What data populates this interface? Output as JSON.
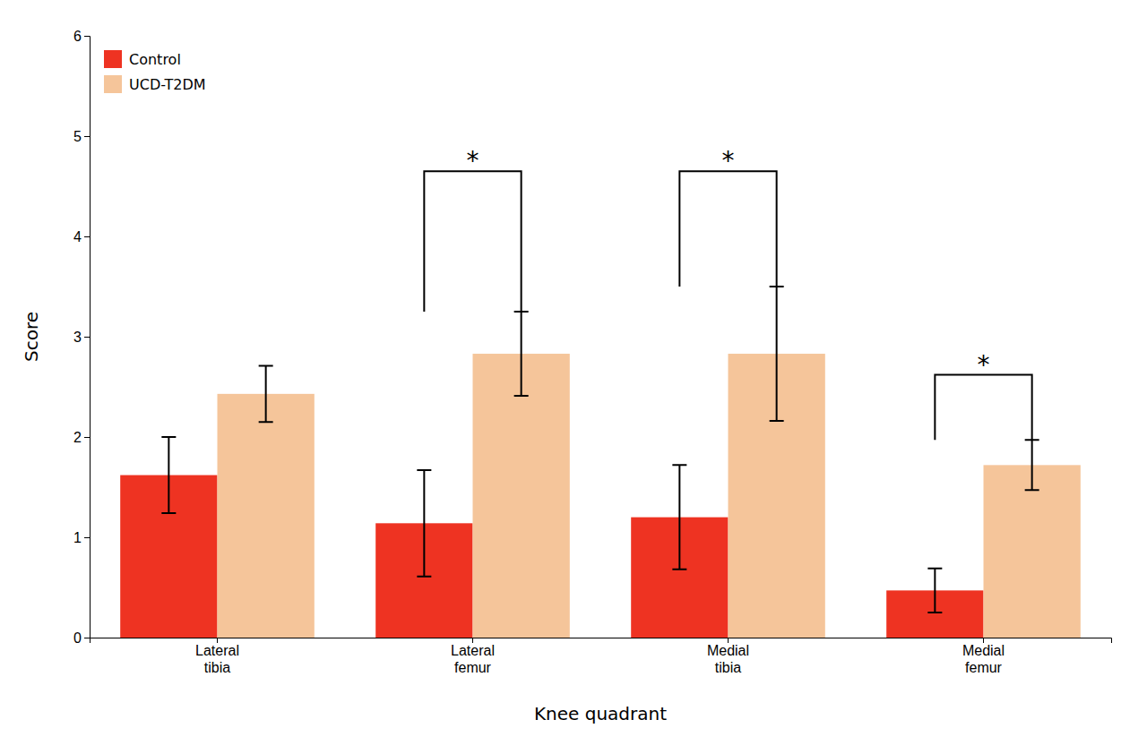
{
  "chart_data": {
    "type": "bar",
    "xlabel": "Knee quadrant",
    "ylabel": "Score",
    "categories": [
      "Lateral\ntibia",
      "Lateral\nfemur",
      "Medial\ntibia",
      "Medial\nfemur"
    ],
    "series": [
      {
        "name": "Control",
        "color": "#EE3322",
        "values": [
          1.62,
          1.14,
          1.2,
          0.47
        ],
        "errors": [
          0.38,
          0.53,
          0.52,
          0.22
        ]
      },
      {
        "name": "UCD-T2DM",
        "color": "#F5C59A",
        "values": [
          2.43,
          2.83,
          2.83,
          1.72
        ],
        "errors": [
          0.28,
          0.42,
          0.67,
          0.25
        ]
      }
    ],
    "brackets": [
      {
        "category": "Lateral\nfemur",
        "top": 4.65,
        "bottom": 3.25,
        "text": "*"
      },
      {
        "category": "Medial\ntibia",
        "top": 4.65,
        "bottom": 3.5,
        "text": "*"
      },
      {
        "category": "Medial\nfemur",
        "top": 2.62,
        "bottom": 1.97,
        "text": "*"
      }
    ],
    "ylim": [
      0,
      6
    ],
    "yticks": [
      0,
      1,
      2,
      3,
      4,
      5,
      6
    ],
    "grid": false,
    "legend": "upper left"
  }
}
